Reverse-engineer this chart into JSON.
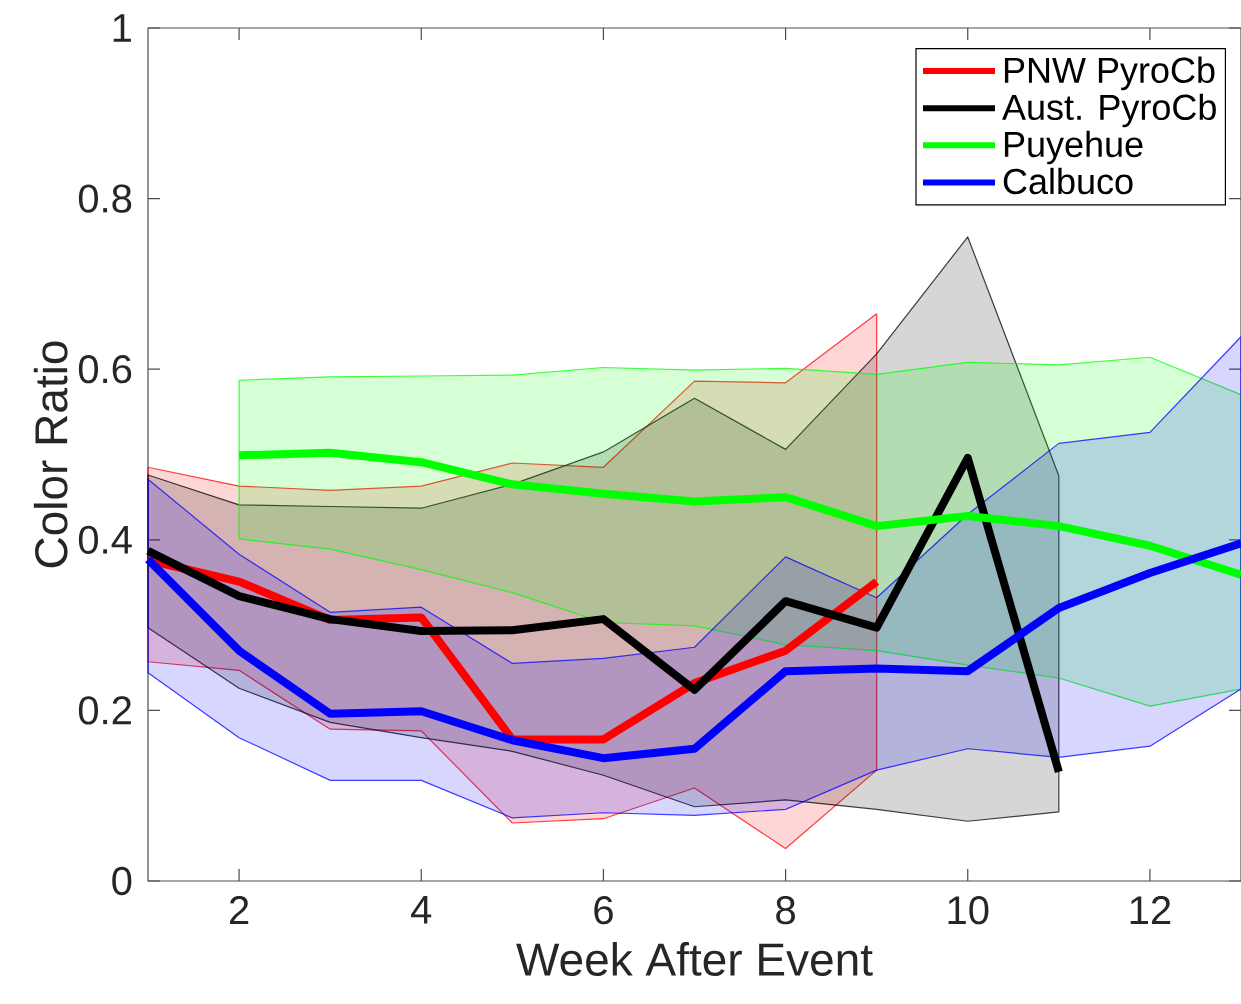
{
  "chart_data": {
    "type": "line",
    "xlabel": "Week After Event",
    "ylabel": "Color Ratio",
    "xlim": [
      1,
      13
    ],
    "ylim": [
      0,
      1
    ],
    "xticks": [
      2,
      4,
      6,
      8,
      10,
      12
    ],
    "yticks": [
      0,
      0.2,
      0.4,
      0.6,
      0.8,
      1
    ],
    "legend": "top right",
    "line_style": "solid",
    "series": [
      {
        "name": "PNW PyroCb",
        "color": "#ff0000",
        "x": [
          1,
          2,
          3,
          4,
          5,
          6,
          7,
          8,
          9
        ],
        "values": [
          0.376,
          0.351,
          0.306,
          0.309,
          0.166,
          0.166,
          0.232,
          0.27,
          0.351
        ],
        "lower": [
          0.257,
          0.247,
          0.178,
          0.176,
          0.068,
          0.073,
          0.109,
          0.038,
          0.13
        ],
        "upper": [
          0.485,
          0.463,
          0.458,
          0.463,
          0.49,
          0.485,
          0.586,
          0.584,
          0.665
        ]
      },
      {
        "name": "Aust. PyroCb",
        "color": "#000000",
        "x": [
          1,
          2,
          3,
          4,
          5,
          6,
          7,
          8,
          9,
          10,
          11
        ],
        "values": [
          0.387,
          0.334,
          0.307,
          0.293,
          0.294,
          0.307,
          0.224,
          0.328,
          0.297,
          0.496,
          0.128
        ],
        "lower": [
          0.297,
          0.226,
          0.186,
          0.168,
          0.152,
          0.124,
          0.087,
          0.095,
          0.084,
          0.07,
          0.081
        ],
        "upper": [
          0.476,
          0.441,
          0.439,
          0.437,
          0.465,
          0.503,
          0.566,
          0.506,
          0.618,
          0.755,
          0.475
        ]
      },
      {
        "name": "Puyehue",
        "color": "#00ff00",
        "x": [
          2,
          3,
          4,
          5,
          6,
          7,
          8,
          9,
          10,
          11,
          12,
          13
        ],
        "values": [
          0.499,
          0.502,
          0.491,
          0.465,
          0.454,
          0.445,
          0.45,
          0.416,
          0.428,
          0.416,
          0.393,
          0.359
        ],
        "lower": [
          0.401,
          0.389,
          0.365,
          0.338,
          0.303,
          0.299,
          0.277,
          0.27,
          0.253,
          0.238,
          0.205,
          0.225
        ],
        "upper": [
          0.587,
          0.591,
          0.592,
          0.593,
          0.602,
          0.599,
          0.601,
          0.594,
          0.608,
          0.605,
          0.614,
          0.57
        ]
      },
      {
        "name": "Calbuco",
        "color": "#0000ff",
        "x": [
          1,
          2,
          3,
          4,
          5,
          6,
          7,
          8,
          9,
          10,
          11,
          12,
          13
        ],
        "values": [
          0.377,
          0.27,
          0.196,
          0.199,
          0.165,
          0.144,
          0.155,
          0.246,
          0.249,
          0.246,
          0.32,
          0.361,
          0.396
        ],
        "lower": [
          0.244,
          0.168,
          0.118,
          0.118,
          0.074,
          0.08,
          0.077,
          0.084,
          0.13,
          0.155,
          0.145,
          0.158,
          0.225
        ],
        "upper": [
          0.471,
          0.383,
          0.315,
          0.321,
          0.255,
          0.261,
          0.274,
          0.38,
          0.332,
          0.43,
          0.513,
          0.526,
          0.638
        ]
      }
    ]
  }
}
